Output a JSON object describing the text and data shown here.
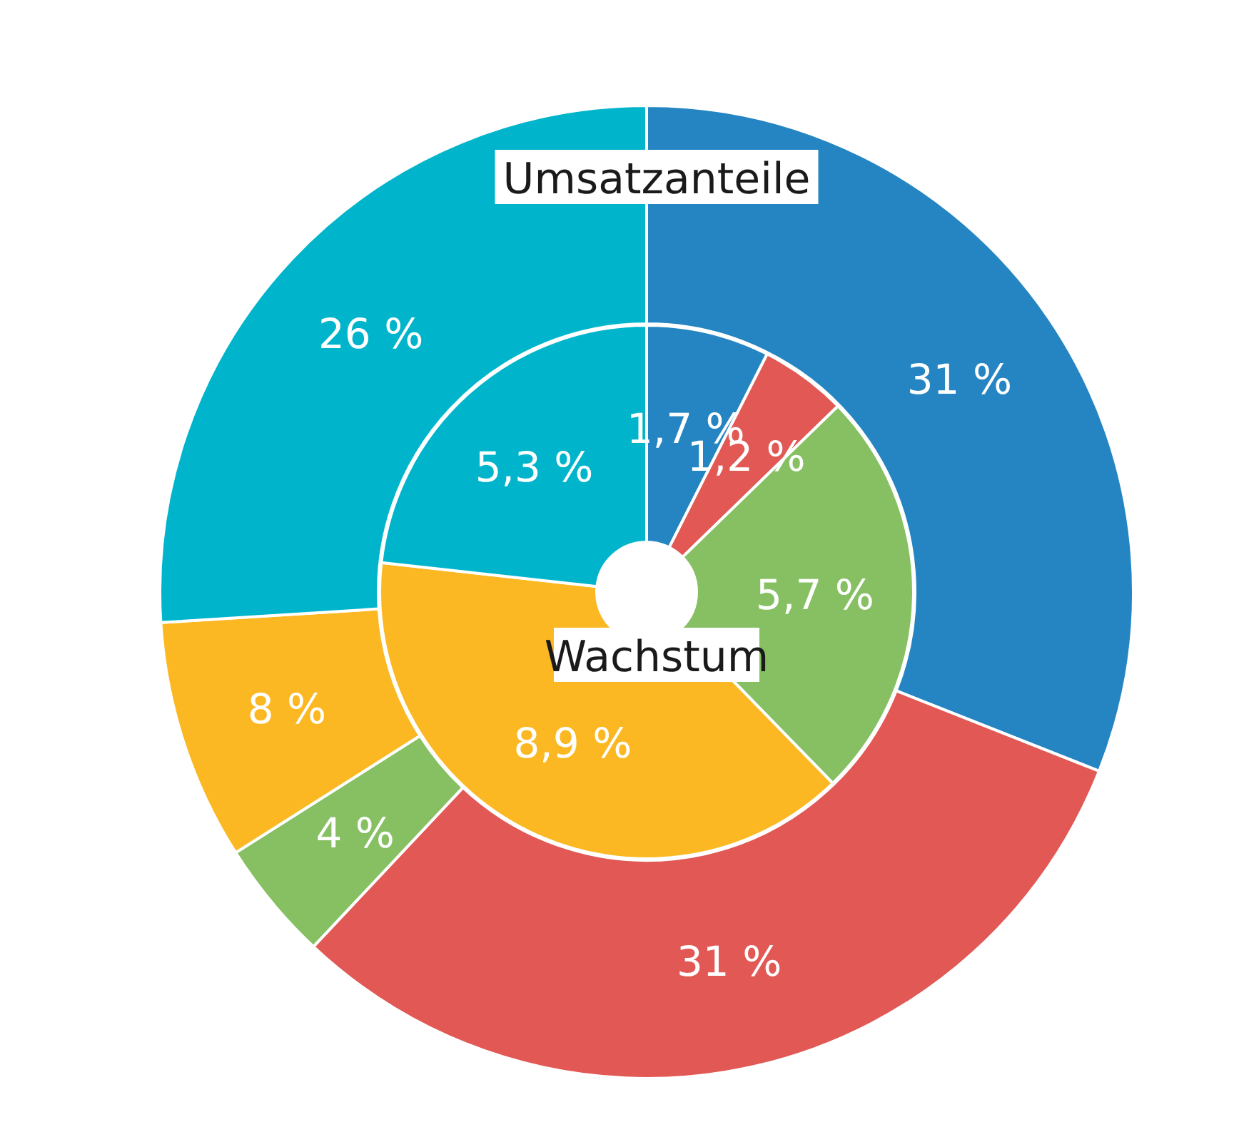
{
  "chart_data": [
    {
      "type": "donut",
      "title": "Umsatzanteile",
      "categories": [
        null,
        null,
        null,
        null,
        null
      ],
      "values": [
        31,
        31,
        4,
        8,
        26
      ],
      "colors": [
        "#2585c2",
        "#e15854",
        "#86c063",
        "#fbb822",
        "#00b5cb"
      ],
      "value_labels": [
        "31 %",
        "31 %",
        "4 %",
        "8 %",
        "26 %"
      ]
    },
    {
      "type": "donut",
      "title": "Wachstum",
      "categories": [
        null,
        null,
        null,
        null,
        null
      ],
      "values": [
        1.7,
        1.2,
        5.7,
        8.9,
        5.3
      ],
      "colors": [
        "#2585c2",
        "#e15854",
        "#86c063",
        "#fbb822",
        "#00b5cb"
      ],
      "value_labels": [
        "1,7 %",
        "1,2 %",
        "5,7 %",
        "8,9 %",
        "5,3 %"
      ]
    }
  ]
}
